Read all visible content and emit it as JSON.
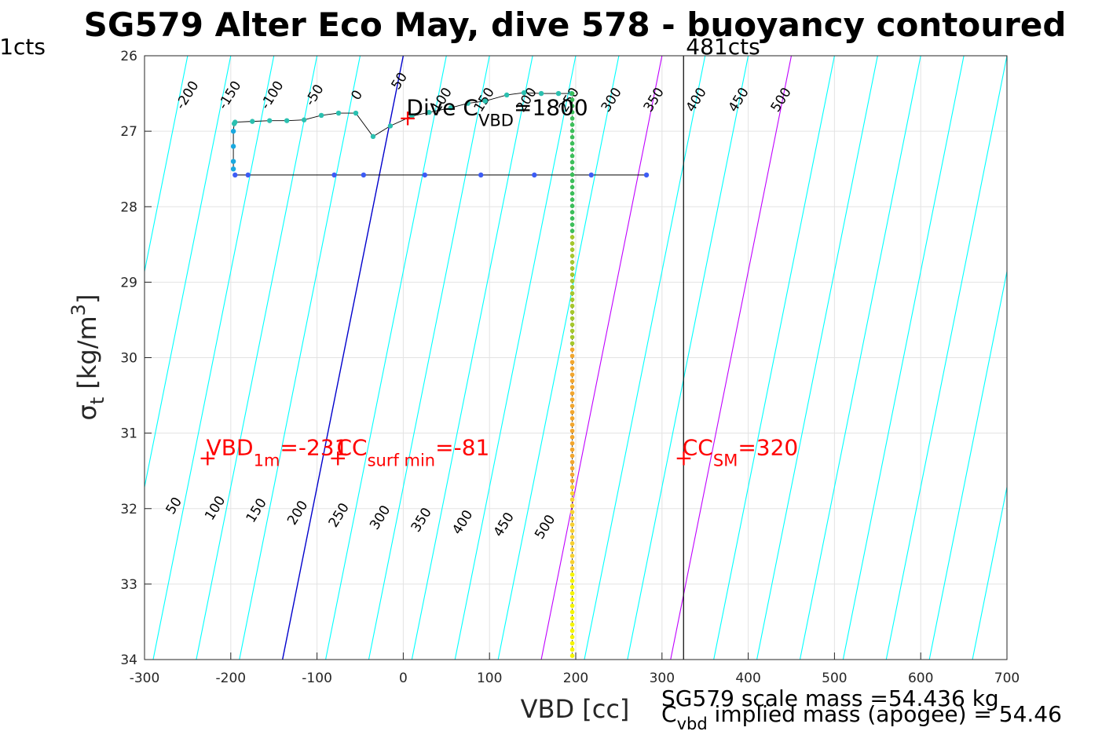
{
  "chart_data": {
    "type": "scatter",
    "title": "SG579 Alter Eco May, dive 578 - buoyancy contoured",
    "xlabel": "VBD [cc]",
    "ylabel": {
      "main": "σ",
      "sub": "t",
      "unit": " [kg/m",
      "sup": "3",
      "close": "]"
    },
    "xlim": [
      -300,
      700
    ],
    "ylim": [
      26,
      34
    ],
    "y_reversed": true,
    "grid": true,
    "xticks": [
      -300,
      -200,
      -100,
      0,
      100,
      200,
      300,
      400,
      500,
      600,
      700
    ],
    "yticks": [
      26,
      27,
      28,
      29,
      30,
      31,
      32,
      33,
      34
    ],
    "contour_upper_labels": [
      "-200",
      "-150",
      "-100",
      "-50",
      "0",
      "50",
      "100",
      "150",
      "200",
      "250",
      "300",
      "350",
      "400",
      "450",
      "500"
    ],
    "contour_lower_labels": [
      "50",
      "100",
      "150",
      "200",
      "250",
      "300",
      "350",
      "400",
      "450",
      "500"
    ],
    "vertical_lines": [
      {
        "x": 325,
        "label": "481cts"
      },
      {
        "x": -310,
        "label": "1cts"
      }
    ],
    "profile": {
      "descent": [
        [
          -195,
          27.58
        ],
        [
          -180,
          27.58
        ],
        [
          -80,
          27.58
        ],
        [
          -46,
          27.58
        ],
        [
          25,
          27.58
        ],
        [
          90,
          27.58
        ],
        [
          152,
          27.58
        ],
        [
          218,
          27.58
        ],
        [
          282,
          27.58
        ]
      ],
      "ascent": [
        [
          -197,
          27.5
        ],
        [
          -197,
          27.4
        ],
        [
          -197,
          27.2
        ],
        [
          -197,
          27.0
        ],
        [
          -196,
          26.9
        ],
        [
          -195,
          26.88
        ],
        [
          -175,
          26.87
        ],
        [
          -155,
          26.86
        ],
        [
          -135,
          26.86
        ],
        [
          -115,
          26.85
        ],
        [
          -95,
          26.79
        ],
        [
          -75,
          26.76
        ],
        [
          -55,
          26.76
        ],
        [
          -35,
          27.07
        ],
        [
          -15,
          26.93
        ],
        [
          10,
          26.8
        ],
        [
          30,
          26.75
        ],
        [
          55,
          26.69
        ],
        [
          75,
          26.63
        ],
        [
          95,
          26.6
        ],
        [
          120,
          26.52
        ],
        [
          140,
          26.49
        ],
        [
          160,
          26.5
        ],
        [
          180,
          26.5
        ],
        [
          195,
          26.5
        ]
      ],
      "vertical": {
        "x": 196,
        "top": 26.5,
        "bottom": 33.95
      }
    },
    "annotations": [
      {
        "x": -232,
        "y": 31.35,
        "text": "VBD",
        "sub": "1m",
        "value": "=-231"
      },
      {
        "x": -81,
        "y": 31.35,
        "text": "CC",
        "sub": "surf min",
        "value": "=-81"
      },
      {
        "x": 320,
        "y": 31.35,
        "text": "CC",
        "sub": "SM",
        "value": "=320"
      },
      {
        "x": 0,
        "y": 26.85,
        "text": "Dive C",
        "sub": "VBD",
        "value": "=1800"
      }
    ],
    "footer": {
      "line1": "SG579 scale mass =54.436 kg",
      "line2_prefix": "C",
      "line2_sub": "vbd",
      "line2_rest": " implied mass (apogee) = 54.46"
    }
  }
}
